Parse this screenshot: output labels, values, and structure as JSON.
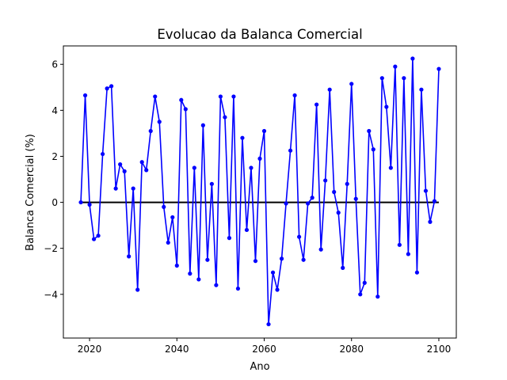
{
  "chart_data": {
    "type": "line",
    "title": "Evolucao da Balanca Comercial",
    "xlabel": "Ano",
    "ylabel": "Balanca Comercial (%)",
    "xlim": [
      2014,
      2104
    ],
    "ylim": [
      -5.9,
      6.8
    ],
    "xticks": [
      2020,
      2040,
      2060,
      2080,
      2100
    ],
    "yticks": [
      -4,
      -2,
      0,
      2,
      4,
      6
    ],
    "grid": false,
    "legend": "none",
    "reference_line": {
      "y": 0,
      "x_range": [
        2018,
        2100
      ],
      "color": "#000000"
    },
    "series": [
      {
        "color": "#0000ff",
        "x": [
          2018,
          2019,
          2020,
          2021,
          2022,
          2023,
          2024,
          2025,
          2026,
          2027,
          2028,
          2029,
          2030,
          2031,
          2032,
          2033,
          2034,
          2035,
          2036,
          2037,
          2038,
          2039,
          2040,
          2041,
          2042,
          2043,
          2044,
          2045,
          2046,
          2047,
          2048,
          2049,
          2050,
          2051,
          2052,
          2053,
          2054,
          2055,
          2056,
          2057,
          2058,
          2059,
          2060,
          2061,
          2062,
          2063,
          2064,
          2065,
          2066,
          2067,
          2068,
          2069,
          2070,
          2071,
          2072,
          2073,
          2074,
          2075,
          2076,
          2077,
          2078,
          2079,
          2080,
          2081,
          2082,
          2083,
          2084,
          2085,
          2086,
          2087,
          2088,
          2089,
          2090,
          2091,
          2092,
          2093,
          2094,
          2095,
          2096,
          2097,
          2098,
          2099,
          2100
        ],
        "values": [
          0.0,
          4.65,
          -0.1,
          -1.6,
          -1.45,
          2.1,
          4.95,
          5.05,
          0.6,
          1.65,
          1.35,
          -2.35,
          0.6,
          -3.8,
          1.75,
          1.4,
          3.1,
          4.6,
          3.5,
          -0.2,
          -1.75,
          -0.65,
          -2.75,
          4.45,
          4.05,
          -3.1,
          1.5,
          -3.35,
          3.35,
          -2.5,
          0.8,
          -3.6,
          4.6,
          3.7,
          -1.55,
          4.6,
          -3.75,
          2.8,
          -1.2,
          1.5,
          -2.55,
          1.9,
          3.1,
          -5.3,
          -3.05,
          -3.8,
          -2.45,
          -0.05,
          2.25,
          4.65,
          -1.5,
          -2.5,
          -0.05,
          0.2,
          4.25,
          -2.05,
          0.95,
          4.9,
          0.45,
          -0.45,
          -2.85,
          0.8,
          5.15,
          0.15,
          -4.0,
          -3.5,
          3.1,
          2.3,
          -4.1,
          5.4,
          4.15,
          1.5,
          5.9,
          -1.85,
          5.4,
          -2.25,
          6.25,
          -3.05,
          4.9,
          0.5,
          -0.85,
          0.05,
          5.8
        ]
      }
    ]
  }
}
